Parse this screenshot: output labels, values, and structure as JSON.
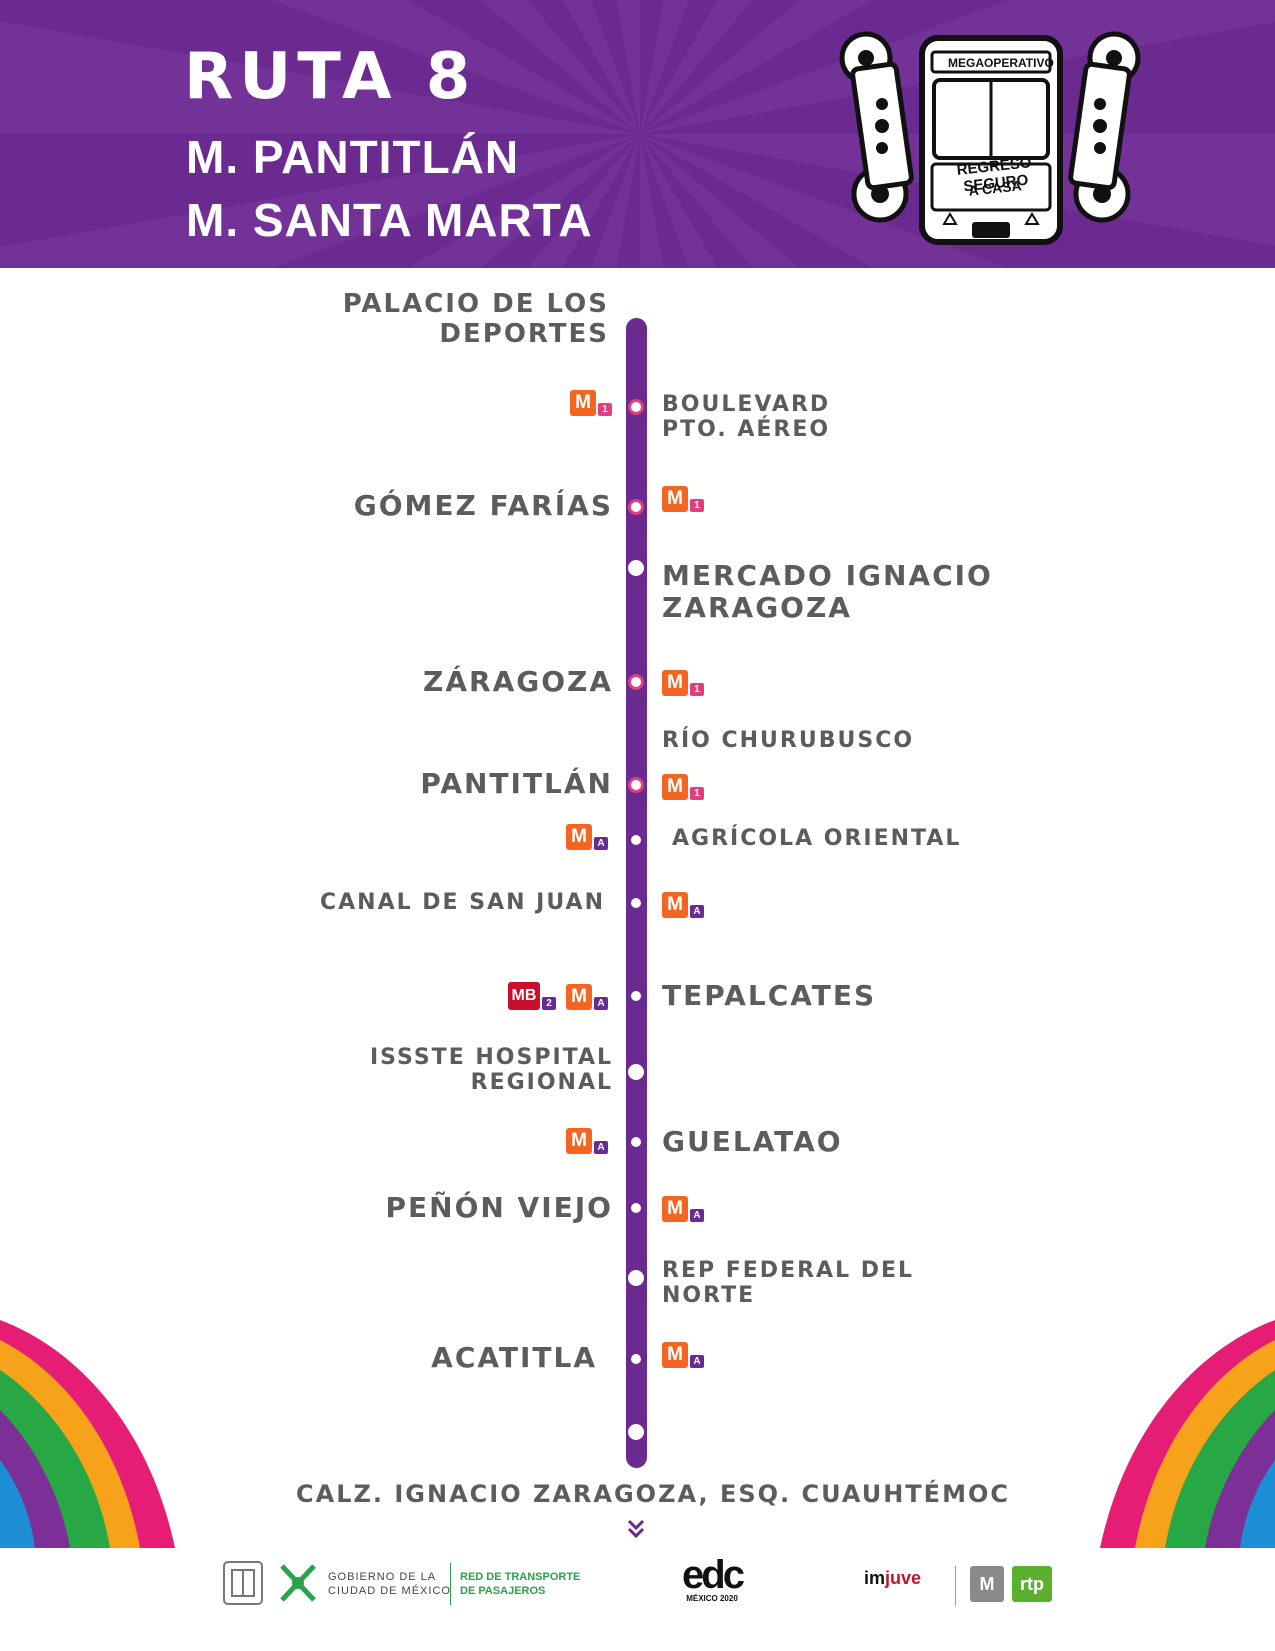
{
  "header": {
    "route_title": "RUTA 8",
    "origin": "M. PANTITLÁN",
    "destination": "M. SANTA MARTA",
    "bus_logo": {
      "top_label": "MEGAOPERATIVO",
      "sign_line1": "REGRESO SEGURO",
      "sign_line2": "A CASA"
    },
    "colors": {
      "purple": "#6a2a8f",
      "pink": "#e0417e",
      "metro_orange": "#f26522",
      "metrobus_red": "#c8102e"
    }
  },
  "stops": [
    {
      "name": "PALACIO DE LOS DEPORTES",
      "side": "left",
      "marker": "none",
      "icons": []
    },
    {
      "name": "BOULEVARD PTO. AÉREO",
      "side": "right",
      "marker": "pink",
      "icons": [
        "metro-1"
      ]
    },
    {
      "name": "GÓMEZ FARÍAS",
      "side": "left",
      "marker": "pink",
      "icons": [
        "metro-1"
      ]
    },
    {
      "name": "MERCADO IGNACIO ZARAGOZA",
      "side": "right",
      "marker": "plain",
      "icons": []
    },
    {
      "name": "ZÁRAGOZA",
      "side": "left",
      "marker": "pink",
      "icons": [
        "metro-1"
      ]
    },
    {
      "name": "RÍO CHURUBUSCO",
      "side": "right",
      "marker": "none",
      "icons": []
    },
    {
      "name": "PANTITLÁN",
      "side": "left",
      "marker": "pink",
      "icons": [
        "metro-1"
      ]
    },
    {
      "name": "AGRÍCOLA ORIENTAL",
      "side": "right",
      "marker": "purple",
      "icons": [
        "metro-A"
      ]
    },
    {
      "name": "CANAL DE SAN JUAN",
      "side": "left",
      "marker": "purple",
      "icons": [
        "metro-A"
      ]
    },
    {
      "name": "TEPALCATES",
      "side": "right",
      "marker": "purple",
      "icons": [
        "metrobus-2",
        "metro-A"
      ]
    },
    {
      "name": "ISSSTE HOSPITAL REGIONAL",
      "side": "left",
      "marker": "plain",
      "icons": []
    },
    {
      "name": "GUELATAO",
      "side": "right",
      "marker": "purple",
      "icons": [
        "metro-A"
      ]
    },
    {
      "name": "PEÑÓN VIEJO",
      "side": "left",
      "marker": "purple",
      "icons": [
        "metro-A"
      ]
    },
    {
      "name": "REP FEDERAL DEL NORTE",
      "side": "right",
      "marker": "plain",
      "icons": []
    },
    {
      "name": "ACATITLA",
      "side": "left",
      "marker": "purple",
      "icons": [
        "metro-A"
      ]
    }
  ],
  "labels": {
    "palacio_l1": "PALACIO DE LOS",
    "palacio_l2": "DEPORTES",
    "boulevard_l1": "BOULEVARD",
    "boulevard_l2": "PTO. AÉREO",
    "gomez": "GÓMEZ FARÍAS",
    "mercado_l1": "MERCADO IGNACIO",
    "mercado_l2": "ZARAGOZA",
    "zaragoza": "ZÁRAGOZA",
    "rio": "RÍO CHURUBUSCO",
    "pantitlan": "PANTITLÁN",
    "agricola": "AGRÍCOLA ORIENTAL",
    "canal": "CANAL DE SAN JUAN",
    "tepalcates": "TEPALCATES",
    "issste_l1": "ISSSTE HOSPITAL",
    "issste_l2": "REGIONAL",
    "guelatao": "GUELATAO",
    "penon": "PEÑÓN VIEJO",
    "rep_l1": "REP FEDERAL DEL",
    "rep_l2": "NORTE",
    "acatitla": "ACATITLA"
  },
  "icon_text": {
    "metro_letter": "M",
    "metrobus_letter": "MB",
    "line_1": "1",
    "line_2": "2",
    "line_A": "A"
  },
  "terminal": "CALZ. IGNACIO ZARAGOZA, ESQ. CUAUHTÉMOC",
  "footer": {
    "gob_line1": "GOBIERNO DE LA",
    "gob_line2": "CIUDAD DE MÉXICO",
    "rtp_line1": "RED DE TRANSPORTE",
    "rtp_line2": "DE PASAJEROS",
    "edc_logo": "edc",
    "edc_sub": "MÉXICO 2020",
    "imjuve_a": "im",
    "imjuve_b": "juve",
    "metro_logo": "M",
    "rtp_logo": "rtp"
  }
}
